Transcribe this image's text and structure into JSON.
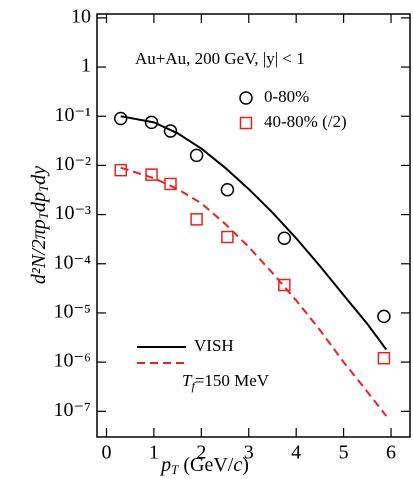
{
  "chart_data": {
    "type": "scatter",
    "annotation": "Au+Au, 200 GeV, |y| < 1",
    "xlabel": [
      "p",
      "T",
      " (GeV/",
      "c",
      ")"
    ],
    "ylabel": [
      "d²N/2πp",
      "T",
      "dp",
      "T",
      "dy"
    ],
    "note": [
      "T",
      "f",
      "=150 MeV"
    ],
    "log_y": true,
    "xlim": [
      -0.2,
      6.4
    ],
    "xticks": [
      0,
      1,
      2,
      3,
      4,
      5,
      6
    ],
    "ylim": [
      3e-08,
      12
    ],
    "yticks": [
      10,
      1,
      {
        "value": 0.1,
        "label": "10⁻¹"
      },
      {
        "value": 0.01,
        "label": "10⁻²"
      },
      {
        "value": 0.001,
        "label": "10⁻³"
      },
      {
        "value": 0.0001,
        "label": "10⁻⁴"
      },
      {
        "value": 1e-05,
        "label": "10⁻⁵"
      },
      {
        "value": 1e-06,
        "label": "10⁻⁶"
      },
      {
        "value": 1e-07,
        "label": "10⁻⁷"
      }
    ],
    "series": [
      {
        "name": "0-80%",
        "marker": "circle",
        "color": "#000000",
        "x": [
          0.3,
          0.95,
          1.35,
          1.9,
          2.55,
          3.75,
          5.85
        ],
        "values": [
          0.09,
          0.075,
          0.05,
          0.016,
          0.0032,
          0.00033,
          8.5e-06
        ]
      },
      {
        "name": "40-80% (/2)",
        "marker": "square",
        "color": "#e8221f",
        "x": [
          0.3,
          0.95,
          1.35,
          1.9,
          2.55,
          3.75,
          5.85
        ],
        "values": [
          0.008,
          0.0065,
          0.0042,
          0.0008,
          0.00035,
          3.7e-05,
          1.2e-06
        ]
      }
    ],
    "curves": [
      {
        "name": "VISH",
        "style": "solid",
        "color": "#000000",
        "x": [
          0.3,
          1,
          1.5,
          2,
          2.5,
          3,
          3.5,
          4,
          4.5,
          5,
          5.5,
          5.9
        ],
        "values": [
          0.1,
          0.075,
          0.045,
          0.022,
          0.009,
          0.0033,
          0.0011,
          0.00033,
          9e-05,
          2.3e-05,
          6e-06,
          1.8e-06
        ]
      },
      {
        "style": "dashed",
        "color": "#e8221f",
        "x": [
          0.3,
          1,
          1.5,
          2,
          2.5,
          3,
          3.5,
          4,
          4.5,
          5,
          5.5,
          5.9
        ],
        "values": [
          0.009,
          0.0055,
          0.0033,
          0.0017,
          0.00065,
          0.00022,
          6.5e-05,
          1.8e-05,
          4.5e-06,
          1e-06,
          2.5e-07,
          8e-08
        ]
      }
    ]
  }
}
